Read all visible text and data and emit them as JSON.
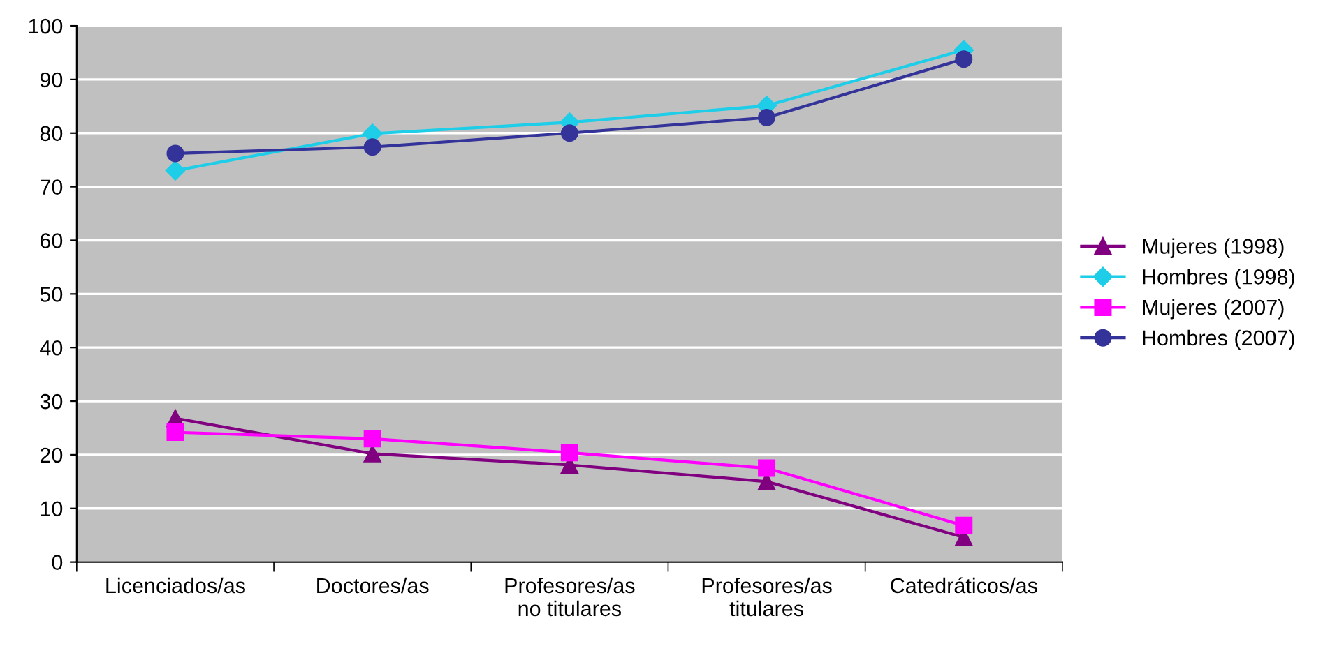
{
  "chart_data": {
    "type": "line",
    "categories": [
      "Licenciados/as",
      "Doctores/as",
      "Profesores/as\nno titulares",
      "Profesores/as\ntitulares",
      "Catedráticos/as"
    ],
    "series": [
      {
        "name": "Mujeres (1998)",
        "color": "#800080",
        "marker": "triangle",
        "values": [
          26.8,
          20.2,
          18.1,
          15.0,
          4.6
        ]
      },
      {
        "name": "Hombres (1998)",
        "color": "#1ecde8",
        "marker": "diamond",
        "values": [
          73.0,
          79.9,
          82.0,
          85.1,
          95.5
        ]
      },
      {
        "name": "Mujeres (2007)",
        "color": "#ff00ff",
        "marker": "square",
        "values": [
          24.2,
          23.0,
          20.4,
          17.5,
          6.8
        ]
      },
      {
        "name": "Hombres (2007)",
        "color": "#333399",
        "marker": "circle",
        "values": [
          76.2,
          77.4,
          80.0,
          82.9,
          93.8
        ]
      }
    ],
    "ylim": [
      0,
      100
    ],
    "yticks": [
      0,
      10,
      20,
      30,
      40,
      50,
      60,
      70,
      80,
      90,
      100
    ],
    "grid": "y",
    "legend": "right",
    "line_style": "solid"
  }
}
